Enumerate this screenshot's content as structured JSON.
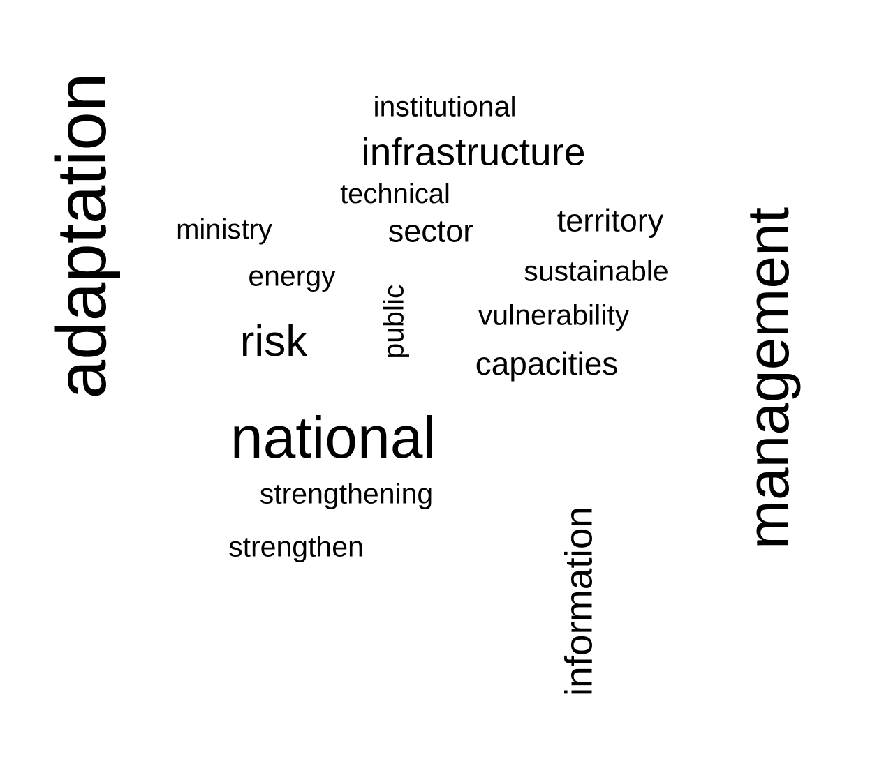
{
  "cloud": {
    "words": [
      {
        "text": "adaptation"
      },
      {
        "text": "management"
      },
      {
        "text": "national"
      },
      {
        "text": "infrastructure"
      },
      {
        "text": "institutional"
      },
      {
        "text": "technical"
      },
      {
        "text": "ministry"
      },
      {
        "text": "sector"
      },
      {
        "text": "territory"
      },
      {
        "text": "energy"
      },
      {
        "text": "sustainable"
      },
      {
        "text": "public"
      },
      {
        "text": "vulnerability"
      },
      {
        "text": "risk"
      },
      {
        "text": "capacities"
      },
      {
        "text": "strengthening"
      },
      {
        "text": "strengthen"
      },
      {
        "text": "information"
      }
    ],
    "text_color": "#000000",
    "background_color": "#ffffff"
  }
}
